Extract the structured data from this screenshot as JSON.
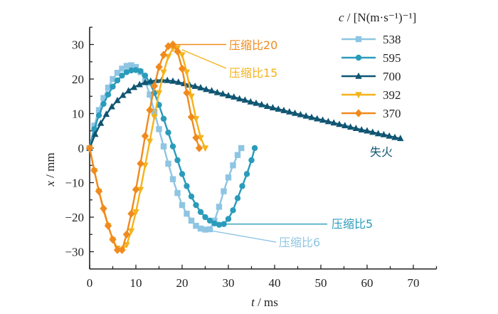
{
  "chart_data": {
    "type": "line",
    "xlabel_var": "t",
    "xlabel_unit": " / ms",
    "ylabel_var": "x",
    "ylabel_unit": " / mm",
    "xlim": [
      0,
      75
    ],
    "ylim": [
      -35,
      35
    ],
    "xticks": [
      "0",
      "10",
      "20",
      "30",
      "40",
      "50",
      "60",
      "70"
    ],
    "xtick_values": [
      0,
      10,
      20,
      30,
      40,
      50,
      60,
      70
    ],
    "yticks": [
      "30",
      "20",
      "10",
      "0",
      "−10",
      "−20",
      "−30"
    ],
    "ytick_values": [
      30,
      20,
      10,
      0,
      -10,
      -20,
      -30
    ],
    "legend_title": "c / [N(m·s⁻¹)⁻¹]",
    "legend_title_var": "c",
    "legend_title_rest": " / [N(m·s⁻¹)⁻¹]",
    "legend_position": "top-right",
    "series": [
      {
        "name": "538",
        "color": "#8ec5e3",
        "marker": "square",
        "x": [
          0,
          1,
          2,
          3,
          4,
          5,
          6,
          7,
          8,
          9,
          10,
          11,
          12,
          13,
          14,
          15,
          16,
          17,
          18,
          19,
          20,
          21,
          22,
          23,
          24,
          25,
          26,
          27,
          28,
          29,
          30,
          31,
          32,
          32.8
        ],
        "y": [
          0,
          6.5,
          11,
          14.5,
          17.5,
          20,
          21.8,
          23,
          23.8,
          24,
          23.5,
          22,
          19.5,
          15.5,
          10.5,
          5.5,
          0.5,
          -4.5,
          -9,
          -13,
          -16.5,
          -19,
          -21,
          -22.5,
          -23.3,
          -23.6,
          -23.5,
          -21,
          -17,
          -12.5,
          -8.5,
          -5,
          -2,
          0
        ]
      },
      {
        "name": "595",
        "color": "#2a9bbb",
        "marker": "circle",
        "x": [
          0,
          1,
          2,
          3,
          4,
          5,
          6,
          7,
          8,
          9,
          10,
          11,
          12,
          13,
          14,
          15,
          16,
          17,
          18,
          19,
          20,
          21,
          22,
          23,
          24,
          25,
          26,
          27,
          28,
          29,
          30,
          31,
          32,
          33,
          34,
          35,
          35.7
        ],
        "y": [
          0,
          5.5,
          9.5,
          12.8,
          15.5,
          17.8,
          19.6,
          21,
          22,
          22.5,
          22.6,
          22.3,
          21,
          19,
          16,
          12.5,
          8.5,
          4.5,
          0.5,
          -3.5,
          -7.5,
          -11,
          -14,
          -16.5,
          -18.5,
          -20,
          -21,
          -21.8,
          -22.2,
          -22,
          -20.5,
          -18,
          -14.5,
          -11,
          -7.5,
          -3.5,
          0
        ]
      },
      {
        "name": "700",
        "color": "#0f5572",
        "marker": "triangle-up",
        "x": [
          0,
          1.2,
          2.4,
          3.6,
          4.8,
          6,
          7.2,
          8.4,
          9.6,
          10.8,
          12,
          13.2,
          14.4,
          15.6,
          16.8,
          18,
          19.2,
          20.4,
          21.6,
          22.8,
          24,
          25.2,
          26.4,
          27.6,
          28.8,
          30,
          31.2,
          32.4,
          33.6,
          34.8,
          36,
          37.2,
          38.4,
          39.6,
          40.8,
          42,
          43.2,
          44.4,
          45.6,
          46.8,
          48,
          49.2,
          50.4,
          51.6,
          52.8,
          54,
          55.2,
          56.4,
          57.6,
          58.8,
          60,
          61.2,
          62.4,
          63.6,
          64.8,
          66,
          67.2
        ],
        "y": [
          0,
          4,
          7.2,
          9.8,
          12,
          13.8,
          15.3,
          16.6,
          17.6,
          18.4,
          19,
          19.4,
          19.6,
          19.7,
          19.6,
          19.4,
          19.1,
          18.7,
          18.3,
          17.9,
          17.5,
          17,
          16.6,
          16.1,
          15.7,
          15.2,
          14.8,
          14.3,
          13.9,
          13.4,
          13,
          12.6,
          12.1,
          11.7,
          11.3,
          10.9,
          10.5,
          10.1,
          9.7,
          9.3,
          8.9,
          8.5,
          8.1,
          7.7,
          7.3,
          6.9,
          6.5,
          6.1,
          5.7,
          5.3,
          5,
          4.6,
          4.2,
          3.9,
          3.5,
          3.1,
          2.8
        ]
      },
      {
        "name": "392",
        "color": "#f5b21a",
        "marker": "triangle-down",
        "x": [
          0,
          1,
          2,
          3,
          4,
          5,
          6,
          7,
          8,
          9,
          10,
          11,
          12,
          13,
          14,
          15,
          16,
          17,
          18,
          19,
          20,
          21,
          22,
          23,
          24,
          25
        ],
        "y": [
          0,
          -6.5,
          -12.5,
          -18,
          -22.5,
          -26.5,
          -29,
          -29.5,
          -28,
          -24,
          -18.5,
          -12,
          -5,
          2,
          9,
          16,
          22,
          26.5,
          28.8,
          29,
          27,
          22,
          15,
          8.5,
          3,
          0
        ]
      },
      {
        "name": "370",
        "color": "#f08a1e",
        "marker": "diamond",
        "x": [
          0,
          1,
          2,
          3,
          4,
          5,
          6,
          7,
          8,
          9,
          10,
          11,
          12,
          13,
          14,
          15,
          16,
          17,
          18,
          19,
          20,
          21,
          22,
          23,
          23.7
        ],
        "y": [
          0,
          -6.5,
          -12.5,
          -17.5,
          -22.5,
          -26.5,
          -29.5,
          -29.5,
          -25,
          -19,
          -12,
          -4.5,
          3.5,
          11,
          18,
          23.5,
          27,
          29.5,
          30,
          28,
          23,
          16,
          9,
          3,
          0
        ]
      }
    ],
    "annotations": [
      {
        "text": "压缩比20",
        "color": "#f08a1e",
        "series": "370"
      },
      {
        "text": "压缩比15",
        "color": "#f5b21a",
        "series": "392"
      },
      {
        "text": "失火",
        "color": "#0f5572",
        "series": "700"
      },
      {
        "text": "压缩比5",
        "color": "#2a9bbb",
        "series": "595"
      },
      {
        "text": "压缩比6",
        "color": "#8ec5e3",
        "series": "538"
      }
    ],
    "axis_color": "#231f20"
  }
}
